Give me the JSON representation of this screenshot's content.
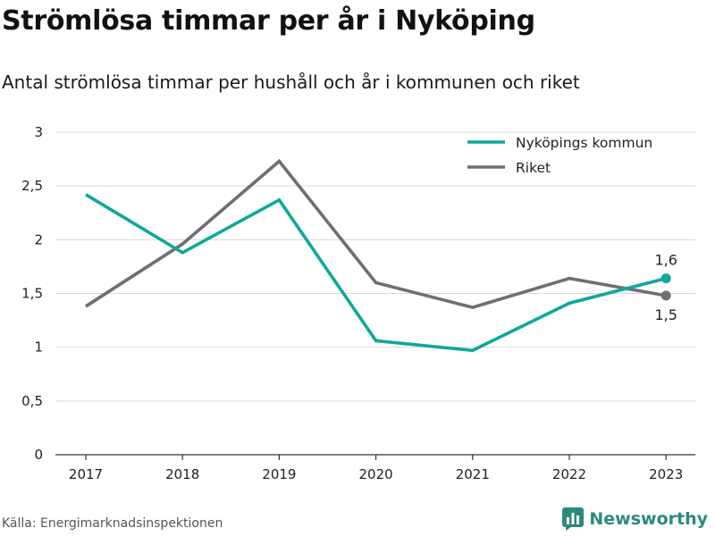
{
  "title": "Strömlösa timmar per år i Nyköping",
  "subtitle": "Antal strömlösa timmar per hushåll och år i kommunen och riket",
  "source": "Källa: Energimarknadsinspektionen",
  "brand": {
    "name": "Newsworthy",
    "icon": "bar-chart-logo-icon"
  },
  "colors": {
    "kommun": "#0fa89a",
    "riket": "#6e6e73",
    "grid": "#d9d9d9",
    "axis": "#333333",
    "brand": "#2b8a7e"
  },
  "chart_data": {
    "type": "line",
    "x": [
      "2017",
      "2018",
      "2019",
      "2020",
      "2021",
      "2022",
      "2023"
    ],
    "y_ticks": [
      "0",
      "0,5",
      "1",
      "1,5",
      "2",
      "2,5",
      "3"
    ],
    "ylim": [
      0,
      3
    ],
    "grid": true,
    "legend_position": "top-right",
    "series": [
      {
        "name": "Nyköpings kommun",
        "values": [
          2.42,
          1.88,
          2.37,
          1.06,
          0.97,
          1.41,
          1.64
        ],
        "end_label": "1,6"
      },
      {
        "name": "Riket",
        "values": [
          1.38,
          1.96,
          2.73,
          1.6,
          1.37,
          1.64,
          1.48
        ],
        "end_label": "1,5"
      }
    ]
  }
}
